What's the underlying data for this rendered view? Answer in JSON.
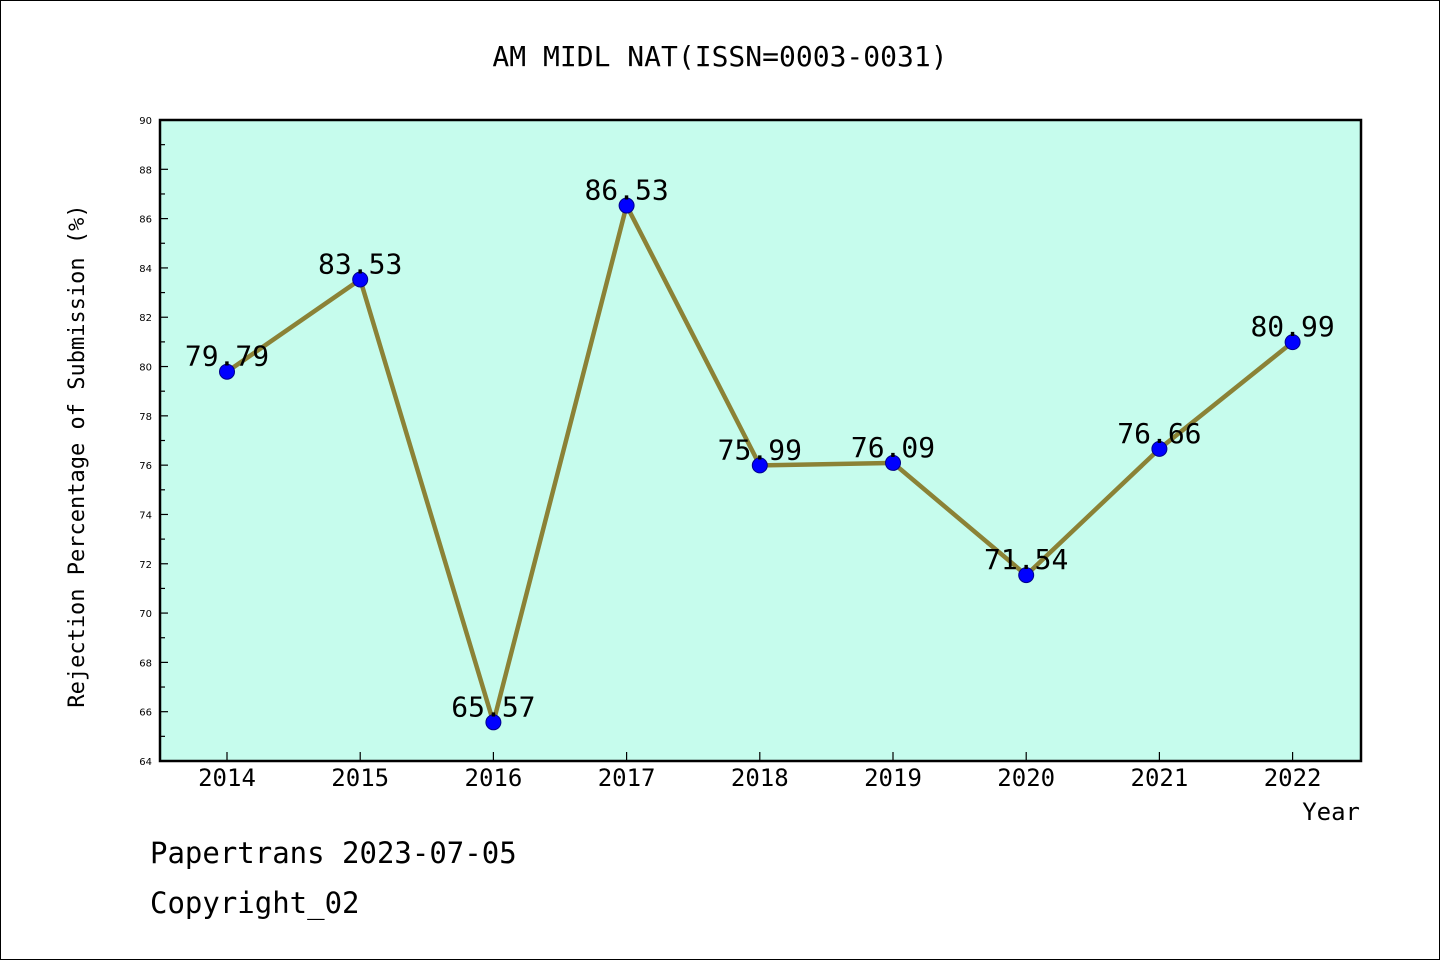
{
  "chart_data": {
    "type": "line",
    "title": "AM MIDL NAT(ISSN=0003-0031)",
    "xlabel": "Year",
    "ylabel": "Rejection Percentage of Submission (%)",
    "categories": [
      "2014",
      "2015",
      "2016",
      "2017",
      "2018",
      "2019",
      "2020",
      "2021",
      "2022"
    ],
    "values": [
      79.79,
      83.53,
      65.57,
      86.53,
      75.99,
      76.09,
      71.54,
      76.66,
      80.99
    ],
    "data_labels": [
      "79.79",
      "83.53",
      "65.57",
      "86.53",
      "75.99",
      "76.09",
      "71.54",
      "76.66",
      "80.99"
    ],
    "ylim": [
      64,
      90
    ],
    "ytick_labels": [
      "64",
      "66",
      "68",
      "70",
      "72",
      "74",
      "76",
      "78",
      "80",
      "82",
      "84",
      "86",
      "88",
      "90"
    ],
    "grid": false,
    "colors": {
      "plot_background": "#c6fced",
      "line": "#8b8236",
      "marker": "#0000ff"
    }
  },
  "footer": {
    "line1": "Papertrans 2023-07-05",
    "line2": "Copyright_02"
  }
}
